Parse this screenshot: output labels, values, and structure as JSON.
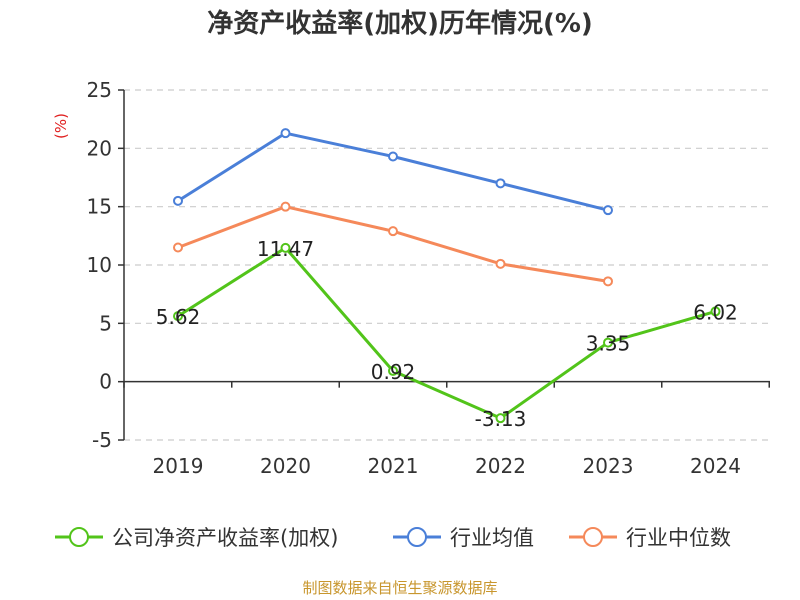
{
  "chart_data": {
    "type": "line",
    "title": "净资产收益率(加权)历年情况(%)",
    "ylabel": "(%)",
    "xlabel": "",
    "categories": [
      "2019",
      "2020",
      "2021",
      "2022",
      "2023",
      "2024"
    ],
    "ylim": [
      -5,
      25
    ],
    "yticks": [
      -5,
      0,
      5,
      10,
      15,
      20,
      25
    ],
    "grid": true,
    "series": [
      {
        "name": "公司净资产收益率(加权)",
        "color": "#52c41a",
        "values": [
          5.62,
          11.47,
          0.92,
          -3.13,
          3.35,
          6.02
        ],
        "labels": [
          "5.62",
          "11.47",
          "0.92",
          "-3.13",
          "3.35",
          "6.02"
        ]
      },
      {
        "name": "行业均值",
        "color": "#4a7fd8",
        "values": [
          15.5,
          21.3,
          19.3,
          17.0,
          14.7,
          null
        ]
      },
      {
        "name": "行业中位数",
        "color": "#f5895a",
        "values": [
          11.5,
          15.0,
          12.9,
          10.1,
          8.6,
          null
        ]
      }
    ],
    "legend_position": "bottom",
    "unit_color": "#e02020"
  },
  "source": {
    "text": "制图数据来自恒生聚源数据库",
    "color": "#c8962d"
  }
}
